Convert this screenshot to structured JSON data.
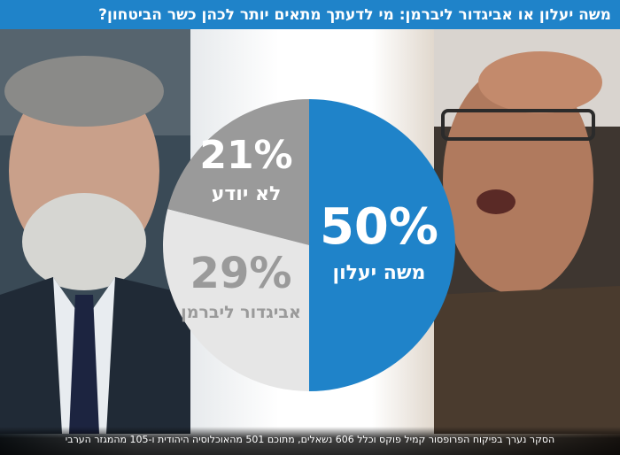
{
  "title": "משה יעלון או אביגדור ליברמן: מי לדעתך מתאים יותר לכהן כשר הביטחון?",
  "footer": "הסקר נערך בפיקוח הפרופסור קמיל פוקס וכלל 606 נשאלים, מתוכם 501 מהאוכלוסיה היהודית ו-105 מהמגזר הערבי",
  "photos": {
    "left": "portrait-photo-man-suit-tie",
    "right": "portrait-photo-man-glasses-speaking"
  },
  "colors": {
    "title_bg": "#1f83c9",
    "yaalon": "#1f83c9",
    "lieberman": "#e6e6e6",
    "dont_know": "#9a9a9a"
  },
  "chart_data": {
    "type": "pie",
    "title": "משה יעלון או אביגדור ליברמן: מי לדעתך מתאים יותר לכהן כשר הביטחון?",
    "slices": [
      {
        "label": "משה יעלון",
        "value": 50,
        "value_label": "50%",
        "color": "#1f83c9",
        "text_color": "#ffffff"
      },
      {
        "label": "אביגדור ליברמן",
        "value": 29,
        "value_label": "29%",
        "color": "#e6e6e6",
        "text_color": "#9a9a9a"
      },
      {
        "label": "לא יודע",
        "value": 21,
        "value_label": "21%",
        "color": "#9a9a9a",
        "text_color": "#ffffff"
      }
    ],
    "start": "top",
    "direction": "clockwise"
  }
}
